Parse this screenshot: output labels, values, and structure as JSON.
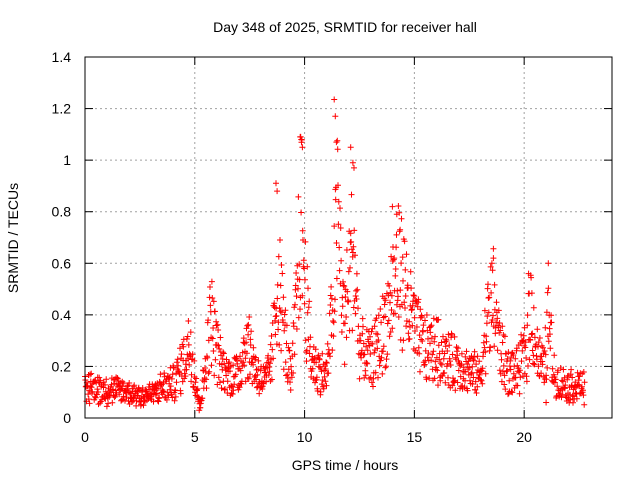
{
  "chart_data": {
    "type": "scatter",
    "title": "Day 348 of 2025, SRMTID for receiver hall",
    "xlabel": "GPS time / hours",
    "ylabel": "SRMTID / TECUs",
    "xlim": [
      0,
      24
    ],
    "ylim": [
      0,
      1.4
    ],
    "xticks": [
      0,
      5,
      10,
      15,
      20
    ],
    "xtick_labels": [
      "0",
      "5",
      "10",
      "15",
      "20"
    ],
    "yticks": [
      0,
      0.2,
      0.4,
      0.6,
      0.8,
      1.0,
      1.2,
      1.4
    ],
    "ytick_labels": [
      "0",
      "0.2",
      "0.4",
      "0.6",
      "0.8",
      "1",
      "1.2",
      "1.4"
    ],
    "grid": true,
    "marker": "plus",
    "color": "#ff0000",
    "series": [
      {
        "name": "SRMTID",
        "x_start": 0,
        "x_end": 22.75,
        "envelope": [
          [
            0.0,
            0.13
          ],
          [
            0.5,
            0.13
          ],
          [
            1.0,
            0.12
          ],
          [
            1.5,
            0.12
          ],
          [
            2.0,
            0.11
          ],
          [
            2.5,
            0.1
          ],
          [
            3.0,
            0.1
          ],
          [
            3.5,
            0.13
          ],
          [
            4.0,
            0.15
          ],
          [
            4.3,
            0.2
          ],
          [
            4.6,
            0.28
          ],
          [
            4.8,
            0.33
          ],
          [
            5.0,
            0.2
          ],
          [
            5.2,
            0.06
          ],
          [
            5.4,
            0.15
          ],
          [
            5.6,
            0.32
          ],
          [
            5.75,
            0.45
          ],
          [
            5.9,
            0.35
          ],
          [
            6.2,
            0.22
          ],
          [
            6.6,
            0.18
          ],
          [
            7.0,
            0.2
          ],
          [
            7.3,
            0.32
          ],
          [
            7.5,
            0.3
          ],
          [
            7.8,
            0.2
          ],
          [
            8.2,
            0.15
          ],
          [
            8.5,
            0.25
          ],
          [
            8.8,
            0.62
          ],
          [
            9.1,
            0.35
          ],
          [
            9.4,
            0.15
          ],
          [
            9.6,
            0.45
          ],
          [
            9.85,
            0.92
          ],
          [
            10.0,
            0.6
          ],
          [
            10.3,
            0.25
          ],
          [
            10.7,
            0.2
          ],
          [
            11.0,
            0.18
          ],
          [
            11.3,
            0.5
          ],
          [
            11.5,
            0.9
          ],
          [
            11.8,
            0.4
          ],
          [
            12.2,
            0.75
          ],
          [
            12.5,
            0.3
          ],
          [
            13.0,
            0.25
          ],
          [
            13.5,
            0.35
          ],
          [
            13.8,
            0.45
          ],
          [
            14.0,
            0.55
          ],
          [
            14.3,
            0.65
          ],
          [
            14.7,
            0.5
          ],
          [
            15.0,
            0.38
          ],
          [
            15.5,
            0.3
          ],
          [
            16.0,
            0.3
          ],
          [
            16.5,
            0.25
          ],
          [
            17.0,
            0.24
          ],
          [
            17.5,
            0.2
          ],
          [
            18.0,
            0.18
          ],
          [
            18.3,
            0.4
          ],
          [
            18.6,
            0.52
          ],
          [
            18.9,
            0.3
          ],
          [
            19.3,
            0.2
          ],
          [
            19.7,
            0.2
          ],
          [
            20.1,
            0.3
          ],
          [
            20.3,
            0.48
          ],
          [
            20.6,
            0.28
          ],
          [
            20.9,
            0.2
          ],
          [
            21.1,
            0.42
          ],
          [
            21.4,
            0.16
          ],
          [
            22.0,
            0.14
          ],
          [
            22.75,
            0.14
          ]
        ],
        "highlights": [
          [
            9.8,
            1.09
          ],
          [
            9.85,
            1.08
          ],
          [
            9.9,
            1.05
          ],
          [
            11.35,
            1.235
          ],
          [
            11.4,
            1.17
          ],
          [
            11.45,
            1.07
          ],
          [
            12.1,
            1.05
          ],
          [
            12.2,
            0.99
          ],
          [
            12.25,
            0.97
          ],
          [
            14.0,
            0.82
          ],
          [
            14.2,
            0.79
          ],
          [
            14.35,
            0.73
          ],
          [
            18.6,
            0.62
          ],
          [
            20.2,
            0.56
          ],
          [
            21.1,
            0.6
          ],
          [
            8.7,
            0.91
          ],
          [
            8.75,
            0.88
          ],
          [
            5.2,
            0.03
          ],
          [
            5.25,
            0.04
          ],
          [
            21.0,
            0.06
          ]
        ]
      }
    ]
  }
}
